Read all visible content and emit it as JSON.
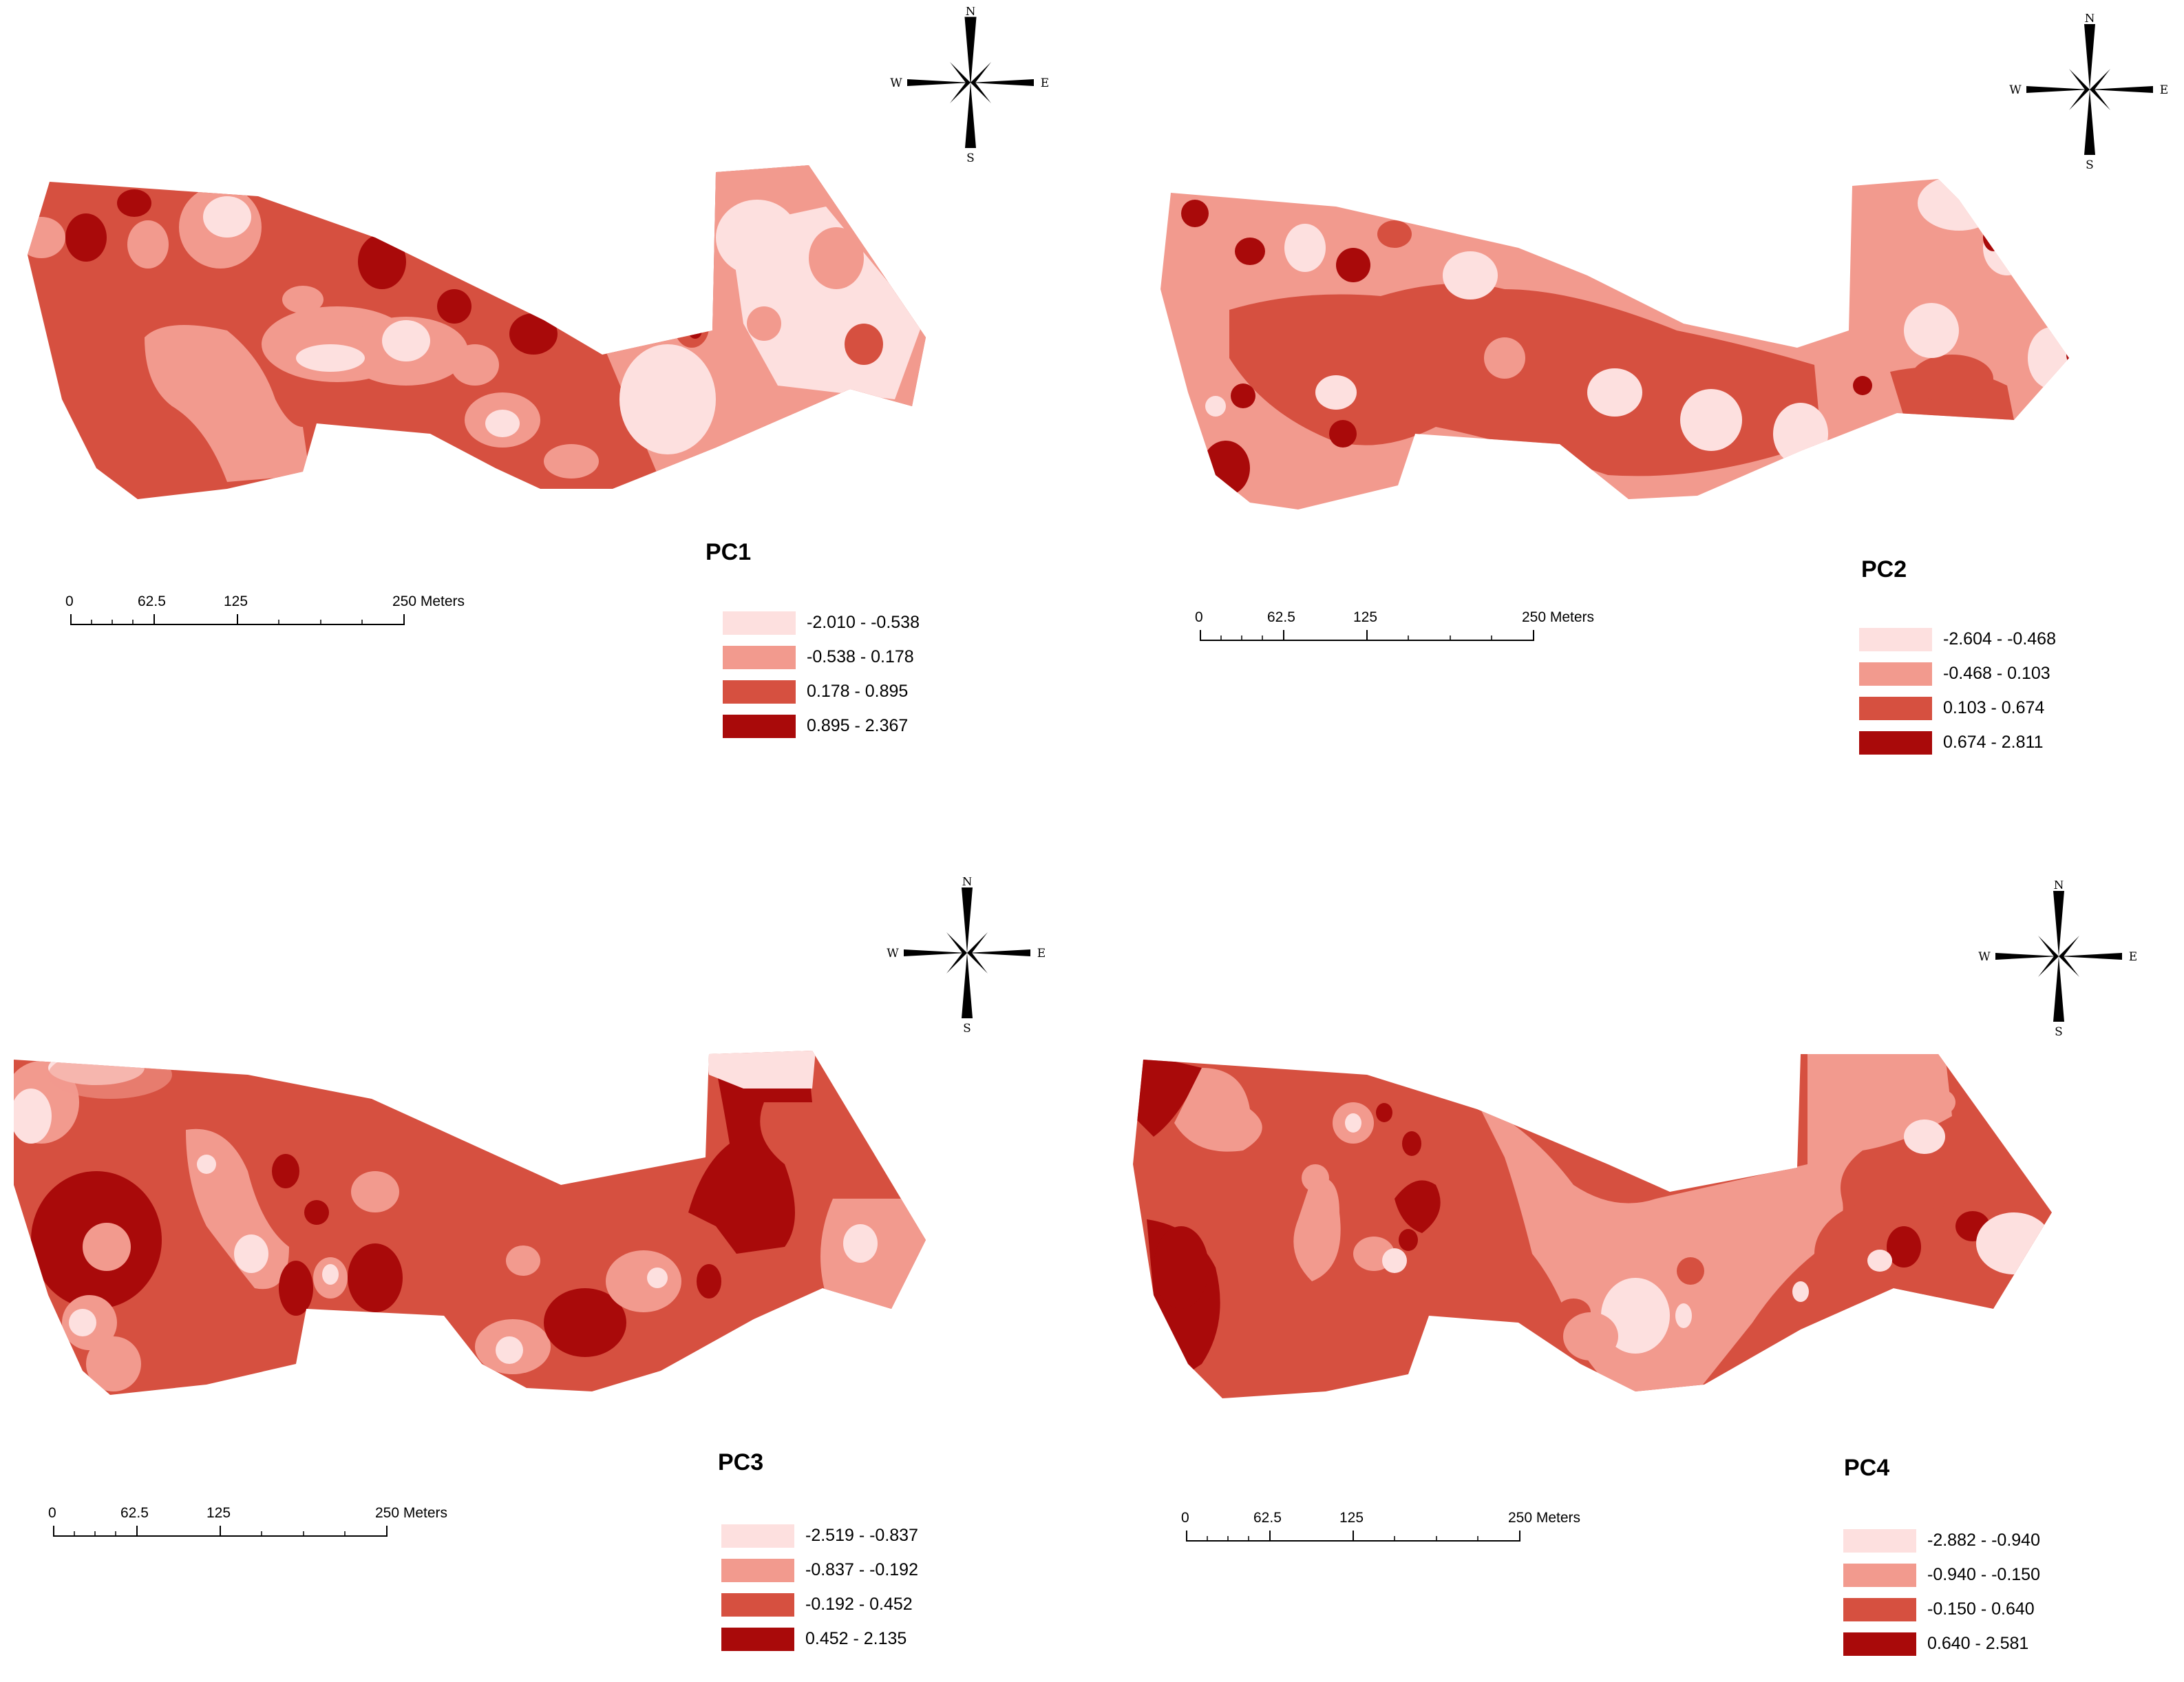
{
  "colors": {
    "class1": "#fde0df",
    "class2": "#f29a8e",
    "class3": "#d65040",
    "class4": "#a90a0a"
  },
  "compass": {
    "n": "N",
    "s": "S",
    "e": "E",
    "w": "W"
  },
  "scale": {
    "t0": "0",
    "t1": "62.5",
    "t2": "125",
    "t3": "250 Meters"
  },
  "panels": [
    {
      "title": "PC1",
      "legend": [
        "-2.010 - -0.538",
        "-0.538 - 0.178",
        "0.178 - 0.895",
        "0.895 - 2.367"
      ]
    },
    {
      "title": "PC2",
      "legend": [
        "-2.604 - -0.468",
        "-0.468 - 0.103",
        "0.103 - 0.674",
        "0.674 - 2.811"
      ]
    },
    {
      "title": "PC3",
      "legend": [
        "-2.519 - -0.837",
        "-0.837 - -0.192",
        "-0.192 - 0.452",
        "0.452 - 2.135"
      ]
    },
    {
      "title": "PC4",
      "legend": [
        "-2.882 - -0.940",
        "-0.940 - -0.150",
        "-0.150 - 0.640",
        "0.640 - 2.581"
      ]
    }
  ]
}
